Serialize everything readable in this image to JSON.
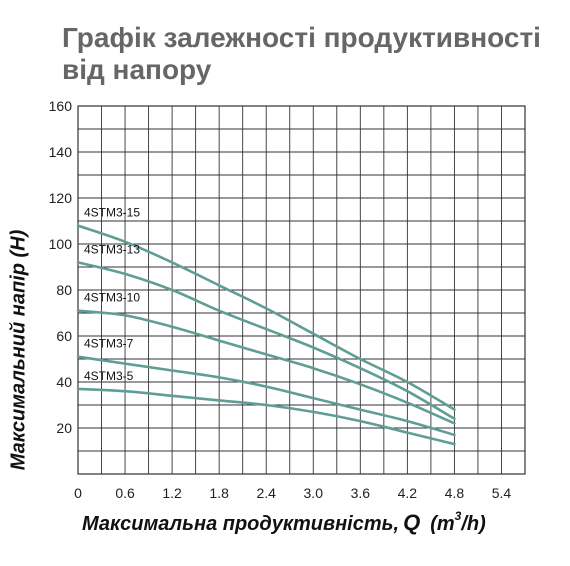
{
  "title": "Графік залежності продуктивності від напору",
  "axis_labels": {
    "y": "Максимальний напір (Н)",
    "x_main": "Максимальна продуктивність,",
    "x_symbol": "Q",
    "x_unit_pre": "(m",
    "x_unit_sup": "3",
    "x_unit_post": "/h)"
  },
  "colors": {
    "curve": "#5f9e94",
    "grid": "#333333"
  },
  "chart_data": {
    "type": "line",
    "title": "Графік залежності продуктивності від напору",
    "xlabel": "Максимальна продуктивність, Q (m3/h)",
    "ylabel": "Максимальний напір (Н)",
    "xlim": [
      0,
      5.7
    ],
    "ylim": [
      0,
      160
    ],
    "x_ticks": [
      0,
      0.6,
      1.2,
      1.8,
      2.4,
      3.0,
      3.6,
      4.2,
      4.8,
      5.4
    ],
    "x_tick_labels": [
      "0",
      "0.6",
      "1.2",
      "1.8",
      "2.4",
      "3.0",
      "3.6",
      "4.2",
      "4.8",
      "5.4"
    ],
    "y_ticks": [
      20,
      40,
      60,
      80,
      100,
      120,
      140,
      160
    ],
    "y_tick_labels": [
      "20",
      "40",
      "60",
      "80",
      "100",
      "120",
      "140",
      "160"
    ],
    "grid": true,
    "series": [
      {
        "name": "4STM3-15",
        "x": [
          0,
          0.6,
          1.2,
          1.8,
          2.4,
          3.0,
          3.6,
          4.2,
          4.8
        ],
        "y": [
          108,
          101,
          92,
          82,
          72,
          61,
          50,
          40,
          28
        ]
      },
      {
        "name": "4STM3-13",
        "x": [
          0,
          0.6,
          1.2,
          1.8,
          2.4,
          3.0,
          3.6,
          4.2,
          4.8
        ],
        "y": [
          92,
          87,
          80,
          71,
          63,
          55,
          46,
          36,
          24
        ]
      },
      {
        "name": "4STM3-10",
        "x": [
          0,
          0.6,
          1.2,
          1.8,
          2.4,
          3.0,
          3.6,
          4.2,
          4.8
        ],
        "y": [
          71,
          69,
          64,
          58,
          52,
          46,
          39,
          31,
          22
        ]
      },
      {
        "name": "4STM3-7",
        "x": [
          0,
          0.6,
          1.2,
          1.8,
          2.4,
          3.0,
          3.6,
          4.2,
          4.8
        ],
        "y": [
          51,
          48,
          45,
          42,
          38,
          33,
          28,
          23,
          17
        ]
      },
      {
        "name": "4STM3-5",
        "x": [
          0,
          0.6,
          1.2,
          1.8,
          2.4,
          3.0,
          3.6,
          4.2,
          4.8
        ],
        "y": [
          37,
          36,
          34,
          32,
          30,
          27,
          23,
          18,
          13
        ]
      }
    ]
  }
}
